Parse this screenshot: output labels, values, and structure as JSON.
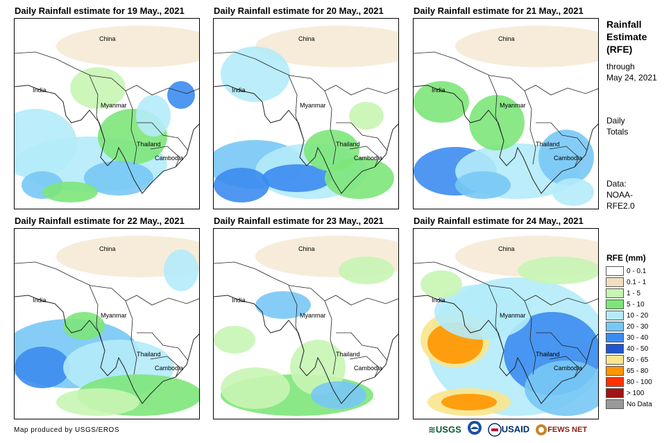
{
  "panels": [
    {
      "title": "Daily Rainfall estimate for 19 May., 2021"
    },
    {
      "title": "Daily Rainfall estimate for 20 May., 2021"
    },
    {
      "title": "Daily Rainfall estimate for 21 May., 2021"
    },
    {
      "title": "Daily Rainfall estimate for 22 May., 2021"
    },
    {
      "title": "Daily Rainfall estimate for 23 May., 2021"
    },
    {
      "title": "Daily Rainfall estimate for 24 May., 2021"
    }
  ],
  "map_labels": {
    "china": "China",
    "india": "India",
    "myanmar": "Myanmar",
    "thailand": "Thailand",
    "cambodia": "Cambodia"
  },
  "sidebar": {
    "title_line1": "Rainfall",
    "title_line2": "Estimate",
    "title_line3": "(RFE)",
    "through": "through",
    "date": "May 24, 2021",
    "daily": "Daily",
    "totals": "Totals",
    "data_label": "Data:",
    "data_source1": "NOAA-",
    "data_source2": "RFE2.0"
  },
  "legend": {
    "title": "RFE (mm)",
    "items": [
      {
        "label": "0 - 0.1",
        "color": "#ffffff"
      },
      {
        "label": "0.1 - 1",
        "color": "#f0dfc0"
      },
      {
        "label": "1 - 5",
        "color": "#c8f5b4"
      },
      {
        "label": "5 - 10",
        "color": "#7de67a"
      },
      {
        "label": "10 - 20",
        "color": "#b4ebfa"
      },
      {
        "label": "20 - 30",
        "color": "#78c8f5"
      },
      {
        "label": "30 - 40",
        "color": "#3c8cf0"
      },
      {
        "label": "40 - 50",
        "color": "#1e55d2"
      },
      {
        "label": "50 - 65",
        "color": "#fae68c"
      },
      {
        "label": "65 - 80",
        "color": "#ff9600"
      },
      {
        "label": "80 - 100",
        "color": "#ff3200"
      },
      {
        "label": "> 100",
        "color": "#a01414"
      },
      {
        "label": "No Data",
        "color": "#999999"
      }
    ]
  },
  "footer": {
    "credit": "Map produced by USGS/EROS",
    "logo_usgs": "USGS",
    "logo_usaid": "USAID",
    "logo_fews": "FEWS NET"
  }
}
